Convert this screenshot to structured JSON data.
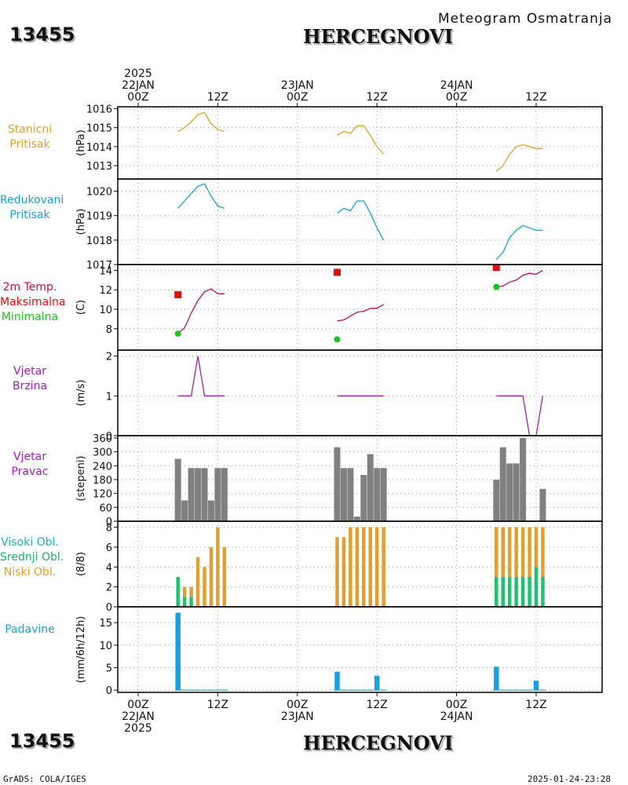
{
  "header": {
    "station_number": "13455",
    "station_name": "HERCEGNOVI",
    "subtitle": "Meteogram Osmatranja"
  },
  "footer": {
    "left": "GrADS: COLA/IGES",
    "right": "2025-01-24-23:28"
  },
  "time_axis": {
    "top_ticks": [
      {
        "hour": 0,
        "lines": [
          "2025",
          "22JAN",
          "00Z"
        ]
      },
      {
        "hour": 12,
        "lines": [
          "12Z"
        ]
      },
      {
        "hour": 24,
        "lines": [
          "23JAN",
          "00Z"
        ]
      },
      {
        "hour": 36,
        "lines": [
          "12Z"
        ]
      },
      {
        "hour": 48,
        "lines": [
          "24JAN",
          "00Z"
        ]
      },
      {
        "hour": 60,
        "lines": [
          "12Z"
        ]
      }
    ],
    "bottom_ticks": [
      {
        "hour": 0,
        "lines": [
          "00Z",
          "22JAN",
          "2025"
        ]
      },
      {
        "hour": 12,
        "lines": [
          "12Z"
        ]
      },
      {
        "hour": 24,
        "lines": [
          "00Z",
          "23JAN"
        ]
      },
      {
        "hour": 36,
        "lines": [
          "12Z"
        ]
      },
      {
        "hour": 48,
        "lines": [
          "00Z",
          "24JAN"
        ]
      },
      {
        "hour": 60,
        "lines": [
          "12Z"
        ]
      }
    ]
  },
  "panel_labels": [
    {
      "lines": [
        {
          "text": "Stanicni",
          "color": "#e0a030"
        },
        {
          "text": "Pritisak",
          "color": "#e0a030"
        }
      ]
    },
    {
      "lines": [
        {
          "text": "Redukovani",
          "color": "#1aa0d0"
        },
        {
          "text": "Pritisak",
          "color": "#1aa0d0"
        }
      ]
    },
    {
      "lines": [
        {
          "text": "2m Temp.",
          "color": "#c0105a"
        },
        {
          "text": "Maksimalna",
          "color": "#e01010"
        },
        {
          "text": "Minimalna",
          "color": "#20c020"
        }
      ]
    },
    {
      "lines": [
        {
          "text": "Vjetar",
          "color": "#a020b0"
        },
        {
          "text": "Brzina",
          "color": "#a020b0"
        }
      ]
    },
    {
      "lines": [
        {
          "text": "Vjetar",
          "color": "#a020b0"
        },
        {
          "text": "Pravac",
          "color": "#a020b0"
        }
      ]
    },
    {
      "lines": [
        {
          "text": "Visoki Obl.",
          "color": "#20b0b0"
        },
        {
          "text": "Srednji Obl.",
          "color": "#20b070"
        },
        {
          "text": "Niski Obl.",
          "color": "#e0a030"
        }
      ]
    },
    {
      "lines": [
        {
          "text": "Padavine",
          "color": "#1aa0d0"
        }
      ]
    }
  ],
  "chart_data": [
    {
      "type": "line",
      "ylabel": "(hPa)",
      "ylim": [
        1012.3,
        1016.1
      ],
      "yticks": [
        1013,
        1014,
        1015,
        1016
      ],
      "grid": true,
      "color": "#e0a030",
      "segments": [
        {
          "x": [
            6,
            7,
            8,
            9,
            10,
            11,
            12,
            13
          ],
          "y": [
            1014.8,
            1015.0,
            1015.3,
            1015.7,
            1015.8,
            1015.2,
            1014.9,
            1014.8
          ]
        },
        {
          "x": [
            30,
            31,
            32,
            33,
            34,
            35,
            36,
            37
          ],
          "y": [
            1014.6,
            1014.8,
            1014.7,
            1015.1,
            1015.1,
            1014.6,
            1014.0,
            1013.6
          ]
        },
        {
          "x": [
            54,
            55,
            56,
            57,
            58,
            59,
            60,
            61
          ],
          "y": [
            1012.7,
            1013.0,
            1013.6,
            1014.0,
            1014.1,
            1014.0,
            1013.9,
            1013.9
          ]
        }
      ]
    },
    {
      "type": "line",
      "ylabel": "(hPa)",
      "ylim": [
        1017.0,
        1020.5
      ],
      "yticks": [
        1017,
        1018,
        1019,
        1020
      ],
      "grid": true,
      "color": "#1aa0d0",
      "segments": [
        {
          "x": [
            6,
            7,
            8,
            9,
            10,
            11,
            12,
            13
          ],
          "y": [
            1019.3,
            1019.6,
            1019.9,
            1020.2,
            1020.3,
            1019.8,
            1019.4,
            1019.3
          ]
        },
        {
          "x": [
            30,
            31,
            32,
            33,
            34,
            35,
            36,
            37
          ],
          "y": [
            1019.1,
            1019.3,
            1019.2,
            1019.6,
            1019.6,
            1019.1,
            1018.5,
            1018.0
          ]
        },
        {
          "x": [
            54,
            55,
            56,
            57,
            58,
            59,
            60,
            61
          ],
          "y": [
            1017.2,
            1017.5,
            1018.1,
            1018.4,
            1018.6,
            1018.5,
            1018.4,
            1018.4
          ]
        }
      ]
    },
    {
      "type": "line",
      "ylabel": "(C)",
      "ylim": [
        5.8,
        14.6
      ],
      "yticks": [
        8,
        10,
        12,
        14
      ],
      "grid": true,
      "color": "#c0105a",
      "segments": [
        {
          "x": [
            6,
            7,
            8,
            9,
            10,
            11,
            12,
            13
          ],
          "y": [
            7.5,
            8.1,
            9.6,
            10.9,
            11.8,
            12.1,
            11.6,
            11.6
          ]
        },
        {
          "x": [
            30,
            31,
            32,
            33,
            34,
            35,
            36,
            37
          ],
          "y": [
            8.8,
            8.9,
            9.3,
            9.7,
            9.8,
            10.1,
            10.1,
            10.5
          ]
        },
        {
          "x": [
            54,
            55,
            56,
            57,
            58,
            59,
            60,
            61
          ],
          "y": [
            12.3,
            12.4,
            12.8,
            13.0,
            13.5,
            13.7,
            13.6,
            14.0
          ]
        }
      ],
      "max_points": {
        "x": [
          6,
          30,
          54
        ],
        "y": [
          11.5,
          13.8,
          14.3
        ],
        "color": "#e01010"
      },
      "min_points": {
        "x": [
          6,
          30,
          54
        ],
        "y": [
          7.5,
          6.9,
          12.3
        ],
        "color": "#20c020"
      }
    },
    {
      "type": "line",
      "ylabel": "(m/s)",
      "ylim": [
        0,
        2.15
      ],
      "yticks": [
        0,
        1,
        2
      ],
      "grid": true,
      "color": "#a020b0",
      "segments": [
        {
          "x": [
            6,
            7,
            8,
            9,
            10,
            11,
            12,
            13
          ],
          "y": [
            1,
            1,
            1,
            2,
            1,
            1,
            1,
            1
          ]
        },
        {
          "x": [
            30,
            31,
            32,
            33,
            34,
            35,
            36,
            37
          ],
          "y": [
            1,
            1,
            1,
            1,
            1,
            1,
            1,
            1
          ]
        },
        {
          "x": [
            54,
            55,
            56,
            57,
            58,
            59,
            60,
            61
          ],
          "y": [
            1,
            1,
            1,
            1,
            1,
            0,
            0,
            1
          ]
        }
      ]
    },
    {
      "type": "bar",
      "ylabel": "(stepeni)",
      "ylim": [
        0,
        370
      ],
      "yticks": [
        0,
        60,
        120,
        180,
        240,
        300,
        360
      ],
      "ytick_labels": [
        "0",
        "60",
        "120",
        "180",
        "240",
        "300",
        "360"
      ],
      "grid": true,
      "color": "#808080",
      "baseline_color": "#c03030",
      "x": [
        6,
        7,
        8,
        9,
        10,
        11,
        12,
        13,
        30,
        31,
        32,
        33,
        34,
        35,
        36,
        37,
        54,
        55,
        56,
        57,
        58,
        59,
        60,
        61
      ],
      "values": [
        270,
        90,
        230,
        230,
        230,
        90,
        230,
        230,
        320,
        230,
        230,
        20,
        200,
        290,
        230,
        230,
        180,
        320,
        250,
        250,
        360,
        0,
        0,
        140
      ]
    },
    {
      "type": "bar",
      "ylabel": "(8/8)",
      "ylim": [
        0,
        8.6
      ],
      "yticks": [
        0,
        2,
        4,
        6,
        8
      ],
      "grid": true,
      "series": [
        {
          "name": "Visoki Obl.",
          "color": "#20b0b0",
          "values": [
            0,
            0,
            0,
            0,
            0,
            0,
            0,
            0,
            0,
            0,
            0,
            0,
            0,
            0,
            0,
            0,
            0,
            0,
            0,
            0,
            0,
            0,
            0,
            0
          ]
        },
        {
          "name": "Srednji Obl.",
          "color": "#20c070",
          "values": [
            3,
            1,
            1,
            0,
            0,
            0,
            0,
            0,
            0,
            0,
            0,
            0,
            0,
            0,
            0,
            0,
            3,
            3,
            3,
            3,
            3,
            3,
            4,
            3
          ]
        },
        {
          "name": "Niski Obl.",
          "color": "#e0a030",
          "values": [
            0,
            1,
            1,
            5,
            4,
            6,
            8,
            6,
            7,
            7,
            8,
            8,
            8,
            8,
            8,
            8,
            5,
            5,
            5,
            5,
            5,
            5,
            4,
            5
          ]
        }
      ],
      "x": [
        6,
        7,
        8,
        9,
        10,
        11,
        12,
        13,
        30,
        31,
        32,
        33,
        34,
        35,
        36,
        37,
        54,
        55,
        56,
        57,
        58,
        59,
        60,
        61
      ]
    },
    {
      "type": "bar",
      "ylabel": "(mm/6h/12h)",
      "ylim": [
        -0.5,
        18.5
      ],
      "yticks": [
        0,
        5,
        10,
        15
      ],
      "grid": true,
      "color": "#1aa0e0",
      "x": [
        6,
        7,
        8,
        9,
        10,
        11,
        12,
        13,
        30,
        31,
        32,
        33,
        34,
        35,
        36,
        37,
        54,
        55,
        56,
        57,
        58,
        59,
        60,
        61
      ],
      "values": [
        17.2,
        0,
        0,
        0,
        0,
        0,
        0,
        0,
        4.1,
        0,
        0,
        0,
        0,
        0,
        3.2,
        0,
        5.2,
        0,
        0,
        0,
        0,
        0,
        2.1,
        0
      ]
    }
  ]
}
